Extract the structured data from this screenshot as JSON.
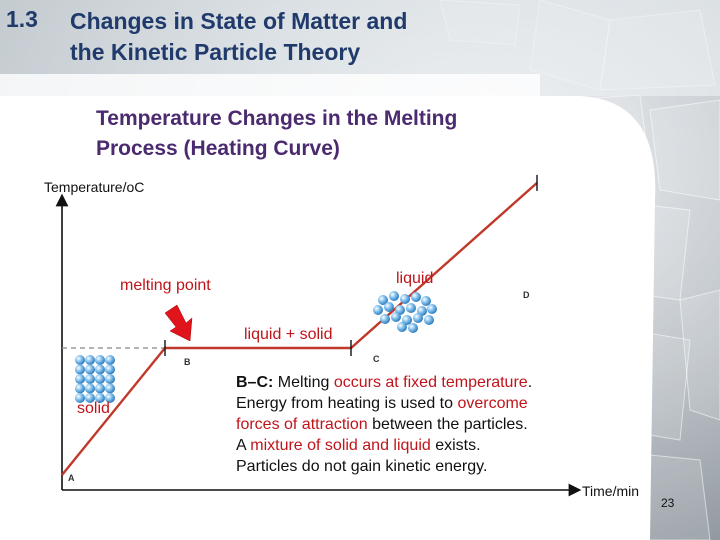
{
  "title": {
    "number": "1.3",
    "line1": "Changes in State of Matter and",
    "line2": "the Kinetic Particle Theory"
  },
  "subtitle": {
    "line1": "Temperature Changes in the Melting",
    "line2": "Process (Heating Curve)"
  },
  "chart_data": {
    "type": "line",
    "ylabel": "Temperature/oC",
    "xlabel": "Time/min",
    "points": [
      {
        "label": "A",
        "x": 0,
        "y": 0
      },
      {
        "label": "B",
        "x": 1,
        "y": 1
      },
      {
        "label": "C",
        "x": 3,
        "y": 1
      },
      {
        "label": "D",
        "x": 5,
        "y": 2.3
      }
    ],
    "annotations": {
      "melting_point": "melting point",
      "liquid": "liquid",
      "liquid_solid": "liquid + solid",
      "solid": "solid"
    }
  },
  "description": {
    "l1": [
      {
        "text": "B–C:",
        "style": "bold"
      },
      {
        "text": " Melting ",
        "style": "normal"
      },
      {
        "text": "occurs at fixed temperature",
        "style": "hl"
      },
      {
        "text": ".",
        "style": "normal"
      }
    ],
    "l2": [
      {
        "text": "Energy from heating is used to ",
        "style": "normal"
      },
      {
        "text": "overcome",
        "style": "hl"
      }
    ],
    "l3": [
      {
        "text": "forces of attraction",
        "style": "hl"
      },
      {
        "text": " between the particles.",
        "style": "normal"
      }
    ],
    "l4": [
      {
        "text": "A ",
        "style": "normal"
      },
      {
        "text": "mixture of solid and liquid",
        "style": "hl"
      },
      {
        "text": " exists.",
        "style": "normal"
      }
    ],
    "l5": [
      {
        "text": "Particles do not gain kinetic energy.",
        "style": "normal"
      }
    ]
  },
  "page_number": "23",
  "colors": {
    "title": "#1f3a6b",
    "subtitle": "#4b2a6f",
    "curve": "#c0392b",
    "highlight": "#c0141b",
    "particle": "#4fa3e0"
  },
  "icons": {
    "arrow": "red-arrow-icon",
    "solid_particles": "solid-particles-icon",
    "liquid_particles": "liquid-particles-icon",
    "background": "ice-cubes"
  }
}
